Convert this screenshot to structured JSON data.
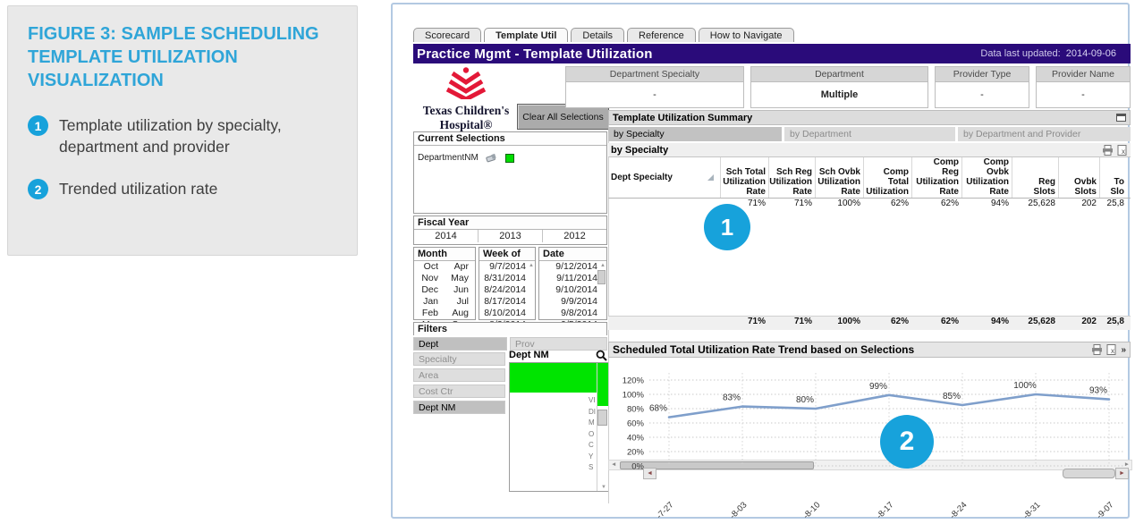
{
  "figure": {
    "title": "FIGURE 3: SAMPLE SCHEDULING TEMPLATE UTILIZATION VISUALIZATION",
    "bullets": [
      {
        "num": "1",
        "text": "Template utilization by specialty, department and provider"
      },
      {
        "num": "2",
        "text": "Trended utilization rate"
      }
    ]
  },
  "app": {
    "tabs": [
      "Scorecard",
      "Template Util",
      "Details",
      "Reference",
      "How to Navigate"
    ],
    "title": "Practice Mgmt - Template Utilization",
    "updated_label": "Data last updated:",
    "updated_value": "2014-09-06",
    "logo": {
      "line1": "Texas Children's",
      "line2": "Hospital®"
    },
    "clear_button": "Clear All Selections",
    "selectors": [
      {
        "label": "Department Specialty",
        "value": "-"
      },
      {
        "label": "Department",
        "value": "Multiple"
      },
      {
        "label": "Provider Type",
        "value": "-"
      },
      {
        "label": "Provider Name",
        "value": "-"
      }
    ],
    "current_selections": {
      "title": "Current Selections",
      "field": "DepartmentNM"
    },
    "fiscal_year": {
      "title": "Fiscal Year",
      "years": [
        "2014",
        "2013",
        "2012"
      ]
    },
    "month": {
      "title": "Month",
      "col1": [
        "Oct",
        "Nov",
        "Dec",
        "Jan",
        "Feb",
        "Mar"
      ],
      "col2": [
        "Apr",
        "May",
        "Jun",
        "Jul",
        "Aug",
        "Sep"
      ]
    },
    "week": {
      "title": "Week of",
      "values": [
        "9/7/2014",
        "8/31/2014",
        "8/24/2014",
        "8/17/2014",
        "8/10/2014",
        "8/3/2014"
      ]
    },
    "date": {
      "title": "Date",
      "values": [
        "9/12/2014",
        "9/11/2014",
        "9/10/2014",
        "9/9/2014",
        "9/8/2014",
        "9/5/2014"
      ]
    },
    "filters": {
      "title": "Filters",
      "tabs": [
        "Dept",
        "Prov"
      ],
      "buttons": [
        "Specialty",
        "Area",
        "Cost Ctr",
        "Dept NM"
      ],
      "listbox_title": "Dept NM",
      "residual_chars": [
        "VI",
        "DI",
        "M",
        "O",
        "C",
        "",
        "",
        "Y",
        "S"
      ]
    },
    "summary": {
      "title": "Template Utilization Summary",
      "view_tabs": [
        "by Specialty",
        "by Department",
        "by Department and Provider"
      ],
      "caption": "by Specialty",
      "columns": [
        "Dept Specialty",
        "Sch Total Utilization Rate",
        "Sch Reg Utilization Rate",
        "Sch Ovbk Utilization Rate",
        "Comp Total Utilization",
        "Comp Reg Utilization Rate",
        "Comp Ovbk Utilization Rate",
        "Reg Slots",
        "Ovbk Slots",
        "To Slo"
      ],
      "row": [
        "",
        "71%",
        "71%",
        "100%",
        "62%",
        "62%",
        "94%",
        "25,628",
        "202",
        "25,8"
      ],
      "totals": [
        "",
        "71%",
        "71%",
        "100%",
        "62%",
        "62%",
        "94%",
        "25,628",
        "202",
        "25,8"
      ]
    },
    "trend_title": "Scheduled Total Utilization Rate Trend based on Selections"
  },
  "chart_data": {
    "type": "line",
    "title": "Scheduled Total Utilization Rate Trend based on Selections",
    "x": [
      "-7-27",
      "-8-03",
      "-8-10",
      "-8-17",
      "-8-24",
      "-8-31",
      "-9-07"
    ],
    "values": [
      68,
      83,
      80,
      99,
      85,
      100,
      93
    ],
    "labels": [
      "68%",
      "83%",
      "80%",
      "99%",
      "85%",
      "100%",
      "93%"
    ],
    "y_ticks": [
      0,
      20,
      40,
      60,
      80,
      100,
      120
    ],
    "y_tick_labels": [
      "0%",
      "20%",
      "40%",
      "60%",
      "80%",
      "100%",
      "120%"
    ],
    "ylim": [
      0,
      140
    ],
    "grid": true,
    "legend": "none",
    "line_color": "#7f9fcb"
  },
  "colors": {
    "accent_blue": "#17a2db",
    "header_purple": "#2a0b7a",
    "selection_green": "#00e400",
    "logo_red": "#e31837",
    "trend_line": "#7f9fcb"
  }
}
